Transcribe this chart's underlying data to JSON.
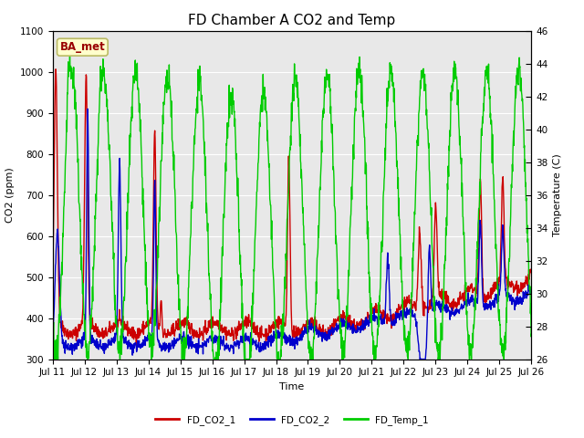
{
  "title": "FD Chamber A CO2 and Temp",
  "xlabel": "Time",
  "ylabel_left": "CO2 (ppm)",
  "ylabel_right": "Temperature (C)",
  "ylim_left": [
    300,
    1100
  ],
  "ylim_right": [
    26,
    46
  ],
  "yticks_left": [
    300,
    400,
    500,
    600,
    700,
    800,
    900,
    1000,
    1100
  ],
  "yticks_right": [
    26,
    28,
    30,
    32,
    34,
    36,
    38,
    40,
    42,
    44,
    46
  ],
  "xtick_labels": [
    "Jul 11",
    "Jul 12",
    "Jul 13",
    "Jul 14",
    "Jul 15",
    "Jul 16",
    "Jul 17",
    "Jul 18",
    "Jul 19",
    "Jul 20",
    "Jul 21",
    "Jul 22",
    "Jul 23",
    "Jul 24",
    "Jul 25",
    "Jul 26"
  ],
  "color_co2_1": "#cc0000",
  "color_co2_2": "#0000cc",
  "color_temp": "#00cc00",
  "legend_labels": [
    "FD_CO2_1",
    "FD_CO2_2",
    "FD_Temp_1"
  ],
  "annotation_text": "BA_met",
  "annotation_box_color": "#ffffcc",
  "annotation_text_color": "#990000",
  "fig_bg_color": "#ffffff",
  "plot_bg_color": "#e8e8e8",
  "grid_color": "#ffffff",
  "linewidth": 1.0,
  "title_fontsize": 11,
  "axis_fontsize": 8,
  "tick_fontsize": 7.5
}
